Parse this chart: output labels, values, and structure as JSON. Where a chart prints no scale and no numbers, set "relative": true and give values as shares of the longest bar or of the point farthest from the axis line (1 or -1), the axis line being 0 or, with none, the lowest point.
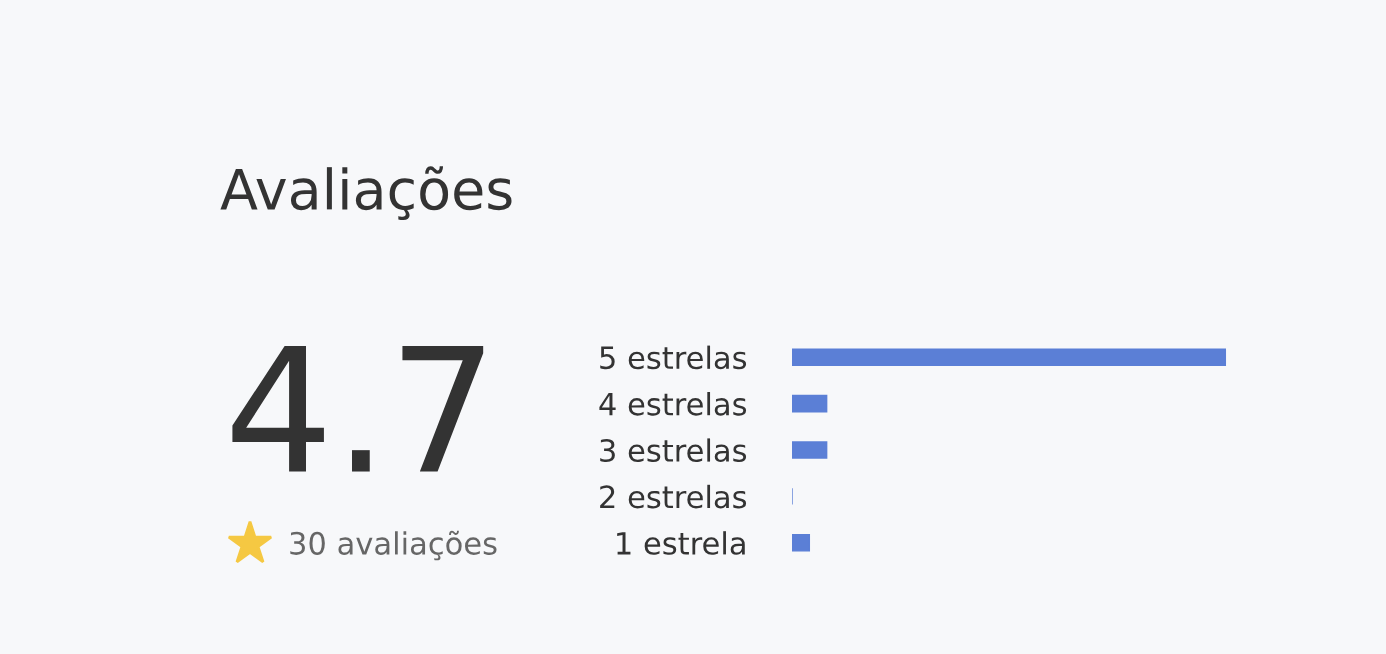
{
  "chart_data": {
    "type": "bar",
    "orientation": "horizontal",
    "relative": true,
    "title": "Avaliações",
    "categories": [
      "5 estrelas",
      "4 estrelas",
      "3 estrelas",
      "2 estrelas",
      "1 estrela"
    ],
    "values": [
      1,
      0.08,
      0.08,
      0,
      0.04
    ],
    "color": "#5b7fd6",
    "annotations": [
      "4.7",
      "30 avaliações"
    ],
    "grid": false,
    "legend": false
  }
}
